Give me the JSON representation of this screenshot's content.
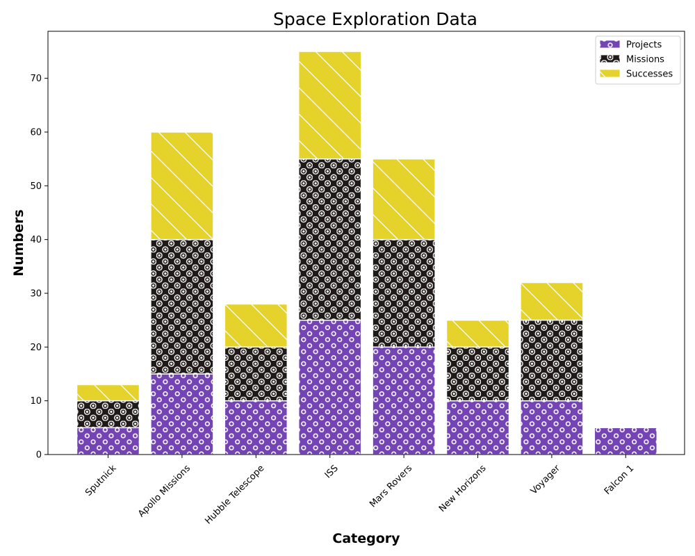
{
  "chart_data": {
    "type": "bar",
    "stacked": true,
    "title": "Space Exploration Data",
    "xlabel": "Category",
    "ylabel": "Numbers",
    "categories": [
      "Sputnick",
      "Apollo Missions",
      "Hubble Telescope",
      "ISS",
      "Mars Rovers",
      "New Horizons",
      "Voyager",
      "Falcon 1"
    ],
    "series": [
      {
        "name": "Projects",
        "values": [
          5,
          15,
          10,
          25,
          20,
          10,
          10,
          5
        ],
        "color": "#7444b5",
        "pattern": "small-rings"
      },
      {
        "name": "Missions",
        "values": [
          5,
          25,
          10,
          30,
          20,
          10,
          15,
          0
        ],
        "color": "#1f1a17",
        "pattern": "large-rings"
      },
      {
        "name": "Successes",
        "values": [
          3,
          20,
          8,
          20,
          15,
          5,
          7,
          0
        ],
        "color": "#e5d22a",
        "pattern": "diagonal-lines"
      }
    ],
    "ylim": [
      0,
      78.75
    ],
    "yticks": [
      0,
      10,
      20,
      30,
      40,
      50,
      60,
      70
    ],
    "legend": "top-right",
    "grid": false
  }
}
